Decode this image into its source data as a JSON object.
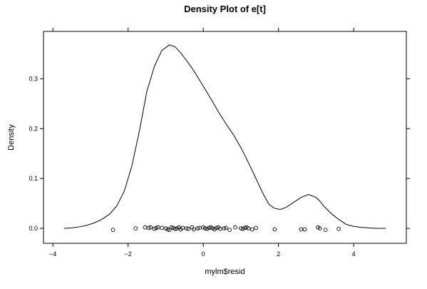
{
  "chart_data": {
    "type": "line",
    "title": "Density Plot of e[t]",
    "xlabel": "mylm$resid",
    "ylabel": "Density",
    "xlim": [
      -4.25,
      5.4
    ],
    "ylim": [
      -0.03,
      0.395
    ],
    "x_ticks": [
      -4,
      -2,
      0,
      2,
      4
    ],
    "x_tick_labels": [
      "−4",
      "−2",
      "0",
      "2",
      "4"
    ],
    "y_ticks": [
      0.0,
      0.1,
      0.2,
      0.3
    ],
    "y_tick_labels": [
      "0.0",
      "0.1",
      "0.2",
      "0.3"
    ],
    "grid": false,
    "series": [
      {
        "values_x": [
          -3.7,
          -3.5,
          -3.3,
          -3.1,
          -2.9,
          -2.7,
          -2.5,
          -2.3,
          -2.1,
          -1.9,
          -1.7,
          -1.5,
          -1.3,
          -1.1,
          -0.9,
          -0.75,
          -0.6,
          -0.4,
          -0.2,
          0.0,
          0.2,
          0.4,
          0.6,
          0.8,
          1.0,
          1.2,
          1.4,
          1.6,
          1.75,
          1.9,
          2.05,
          2.2,
          2.4,
          2.6,
          2.8,
          3.0,
          3.1,
          3.2,
          3.4,
          3.6,
          3.8,
          4.0,
          4.2,
          4.4,
          4.6,
          4.85
        ],
        "values_y": [
          0.0,
          0.001,
          0.003,
          0.006,
          0.011,
          0.018,
          0.028,
          0.045,
          0.075,
          0.125,
          0.195,
          0.275,
          0.325,
          0.357,
          0.368,
          0.364,
          0.352,
          0.332,
          0.31,
          0.285,
          0.26,
          0.234,
          0.21,
          0.188,
          0.162,
          0.132,
          0.1,
          0.068,
          0.048,
          0.04,
          0.038,
          0.042,
          0.052,
          0.062,
          0.068,
          0.062,
          0.055,
          0.045,
          0.03,
          0.018,
          0.008,
          0.004,
          0.002,
          0.001,
          0.0,
          0.0
        ]
      }
    ],
    "rug": {
      "marker": "open-circle",
      "x": [
        -2.4,
        -1.8,
        -1.55,
        -1.45,
        -1.4,
        -1.3,
        -1.25,
        -1.2,
        -1.1,
        -1.0,
        -0.95,
        -0.9,
        -0.85,
        -0.8,
        -0.75,
        -0.7,
        -0.65,
        -0.6,
        -0.55,
        -0.45,
        -0.4,
        -0.3,
        -0.25,
        -0.15,
        -0.1,
        0.0,
        0.05,
        0.1,
        0.15,
        0.2,
        0.25,
        0.3,
        0.35,
        0.4,
        0.45,
        0.55,
        0.6,
        0.7,
        0.85,
        1.0,
        1.05,
        1.1,
        1.15,
        1.2,
        1.3,
        1.4,
        1.9,
        2.6,
        2.7,
        3.05,
        3.1,
        3.25,
        3.6
      ],
      "y": [
        -0.003,
        0.0,
        0.002,
        0.001,
        0.002,
        -0.001,
        0.001,
        0.002,
        0.001,
        0.0,
        -0.002,
        -0.003,
        0.002,
        0.001,
        -0.001,
        0.0,
        0.002,
        -0.002,
        0.001,
        0.0,
        -0.001,
        0.002,
        -0.002,
        0.0,
        0.001,
        0.002,
        0.0,
        -0.001,
        0.001,
        0.002,
        0.0,
        -0.002,
        0.001,
        0.002,
        -0.001,
        0.0,
        0.001,
        -0.003,
        0.002,
        0.0,
        -0.001,
        0.001,
        0.002,
        0.0,
        -0.002,
        0.001,
        -0.002,
        -0.002,
        -0.002,
        0.002,
        0.0,
        -0.003,
        -0.001
      ]
    }
  }
}
